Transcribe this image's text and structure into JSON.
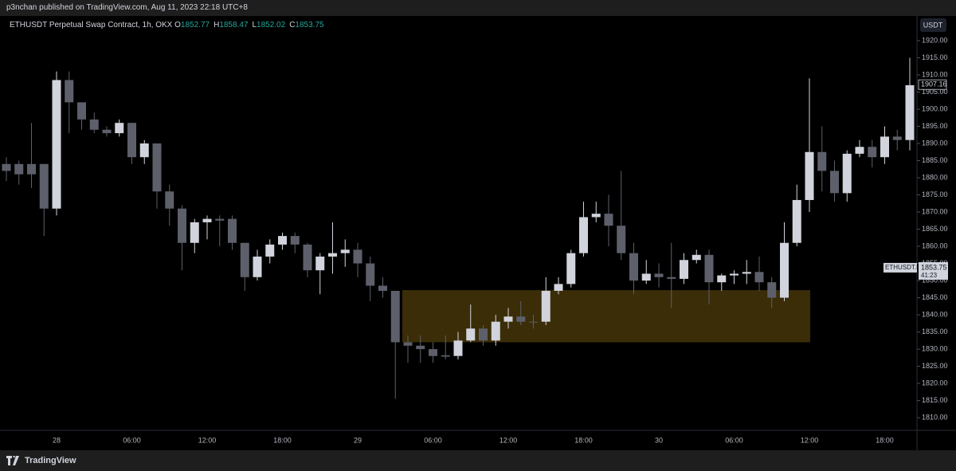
{
  "header": "p3nchan published on TradingView.com, Aug 11, 2023 22:18 UTC+8",
  "footer": "TradingView",
  "chart_data": {
    "type": "candlestick",
    "title": "ETHUSDT Perpetual Swap Contract, 1h, OKX",
    "legend_ohlc": [
      {
        "label": "O",
        "value": 1852.77
      },
      {
        "label": "H",
        "value": 1858.47
      },
      {
        "label": "L",
        "value": 1852.02
      },
      {
        "label": "C",
        "value": 1853.75
      }
    ],
    "currency_button": "USDT",
    "last_price": 1907.16,
    "symbol_tag": {
      "name": "ETHUSDT.P",
      "price": 1853.75,
      "countdown": "41:23"
    },
    "up_color": "#d1d4dc",
    "down_color": "#5d606b",
    "categories": [
      null,
      null,
      null,
      null,
      "28",
      null,
      null,
      null,
      null,
      null,
      "06:00",
      null,
      null,
      null,
      null,
      null,
      "12:00",
      null,
      null,
      null,
      null,
      null,
      "18:00",
      null,
      null,
      null,
      null,
      null,
      "29",
      null,
      null,
      null,
      null,
      null,
      "06:00",
      null,
      null,
      null,
      null,
      null,
      "12:00",
      null,
      null,
      null,
      null,
      null,
      "18:00",
      null,
      null,
      null,
      null,
      null,
      "30",
      null,
      null,
      null,
      null,
      null,
      "06:00",
      null,
      null,
      null,
      null,
      null,
      "12:00",
      null,
      null,
      null,
      null,
      null,
      "18:00",
      null,
      null
    ],
    "open": [
      1884,
      1884,
      1884,
      1884,
      1871,
      1908.5,
      1902,
      1897,
      1894,
      1893,
      1896,
      1886,
      1890,
      1876,
      1871,
      1861,
      1867,
      1868,
      1868,
      1861,
      1851,
      1857,
      1860.5,
      1863,
      1860.5,
      1853,
      1857,
      1858,
      1859,
      1855,
      1848.5,
      1847,
      1832,
      1831,
      1830,
      1828.2,
      1828,
      1832.5,
      1836,
      1832.5,
      1838,
      1839.5,
      1838,
      1838,
      1847,
      1849,
      1858,
      1868.5,
      1869.5,
      1866,
      1858,
      1850,
      1852,
      1851,
      1850.5,
      1856,
      1857.5,
      1849.5,
      1851.5,
      1852,
      1852.5,
      1849.5,
      1845,
      1861,
      1873.5,
      1887.5,
      1882,
      1875.5,
      1887,
      1889,
      1886,
      1892,
      1891
    ],
    "high": [
      1886,
      1885,
      1896,
      1884,
      1911,
      1911,
      1902,
      1899,
      1895,
      1897,
      1896,
      1891,
      1890,
      1878,
      1872,
      1868,
      1869,
      1869,
      1869,
      1861,
      1859,
      1862,
      1864,
      1864,
      1861,
      1858,
      1867,
      1862,
      1861,
      1857,
      1851,
      1847,
      1834,
      1834,
      1832,
      1834,
      1835,
      1843,
      1837,
      1840,
      1842,
      1844,
      1840,
      1851,
      1851,
      1859,
      1873,
      1873,
      1875,
      1882,
      1861,
      1856,
      1855,
      1861,
      1858,
      1859,
      1859,
      1852,
      1853,
      1856,
      1857,
      1851,
      1867,
      1878,
      1909,
      1895,
      1885,
      1888,
      1891,
      1891,
      1895,
      1894,
      1915
    ],
    "low": [
      1879,
      1878,
      1877,
      1863,
      1869,
      1893,
      1894,
      1893,
      1892,
      1892,
      1884,
      1884,
      1871,
      1866,
      1853,
      1858,
      1862,
      1860,
      1859,
      1847,
      1850,
      1855,
      1859,
      1858,
      1851,
      1846,
      1852,
      1854,
      1851,
      1844,
      1845,
      1815.5,
      1826,
      1826,
      1826,
      1827,
      1827,
      1832,
      1831,
      1831,
      1836,
      1837,
      1836,
      1837,
      1846,
      1848,
      1857,
      1867,
      1860,
      1856,
      1846,
      1849,
      1848,
      1842,
      1849,
      1855,
      1843,
      1847,
      1849,
      1849,
      1847,
      1842,
      1844,
      1860,
      1870,
      1876,
      1873,
      1873,
      1886,
      1883,
      1884,
      1888,
      1888
    ],
    "close": [
      1882,
      1881,
      1881,
      1871,
      1908.5,
      1902,
      1897,
      1894,
      1893,
      1896,
      1886,
      1890,
      1876,
      1871,
      1861,
      1867,
      1868,
      1867.5,
      1861,
      1851,
      1857,
      1860.5,
      1863,
      1860.5,
      1853,
      1857,
      1858,
      1859,
      1855,
      1848.5,
      1847,
      1832,
      1831,
      1830,
      1828,
      1827.8,
      1832.5,
      1836,
      1832.5,
      1838,
      1839.5,
      1838,
      1837.8,
      1847,
      1849,
      1858,
      1868.5,
      1869.5,
      1866,
      1858,
      1850,
      1852,
      1851,
      1850.5,
      1856,
      1857.5,
      1849.5,
      1851.5,
      1852,
      1852.5,
      1849.5,
      1845,
      1861,
      1873.5,
      1887.5,
      1882,
      1875.5,
      1887,
      1889,
      1886,
      1892,
      1891,
      1907
    ],
    "zone": {
      "top": 1847.2,
      "bottom": 1832,
      "color": "#3a2d08"
    },
    "ylim": [
      1806.3,
      1927.2
    ],
    "yticks": [
      {
        "value": 1810,
        "label": "1810.00"
      },
      {
        "value": 1815,
        "label": "1815.00"
      },
      {
        "value": 1820,
        "label": "1820.00"
      },
      {
        "value": 1825,
        "label": "1825.00"
      },
      {
        "value": 1830,
        "label": "1830.00"
      },
      {
        "value": 1835,
        "label": "1835.00"
      },
      {
        "value": 1840,
        "label": "1840.00"
      },
      {
        "value": 1845,
        "label": "1845.00"
      },
      {
        "value": 1850,
        "label": "1850.00"
      },
      {
        "value": 1855,
        "label": "1855.00"
      },
      {
        "value": 1860,
        "label": "1860.00"
      },
      {
        "value": 1865,
        "label": "1865.00"
      },
      {
        "value": 1870,
        "label": "1870.00"
      },
      {
        "value": 1875,
        "label": "1875.00"
      },
      {
        "value": 1880,
        "label": "1880.00"
      },
      {
        "value": 1885,
        "label": "1885.00"
      },
      {
        "value": 1890,
        "label": "1890.00"
      },
      {
        "value": 1895,
        "label": "1895.00"
      },
      {
        "value": 1900,
        "label": "1900.00"
      },
      {
        "value": 1905,
        "label": "1905.00"
      },
      {
        "value": 1910,
        "label": "1910.00"
      },
      {
        "value": 1915,
        "label": "1915.00"
      },
      {
        "value": 1920,
        "label": "1920.00"
      }
    ]
  }
}
